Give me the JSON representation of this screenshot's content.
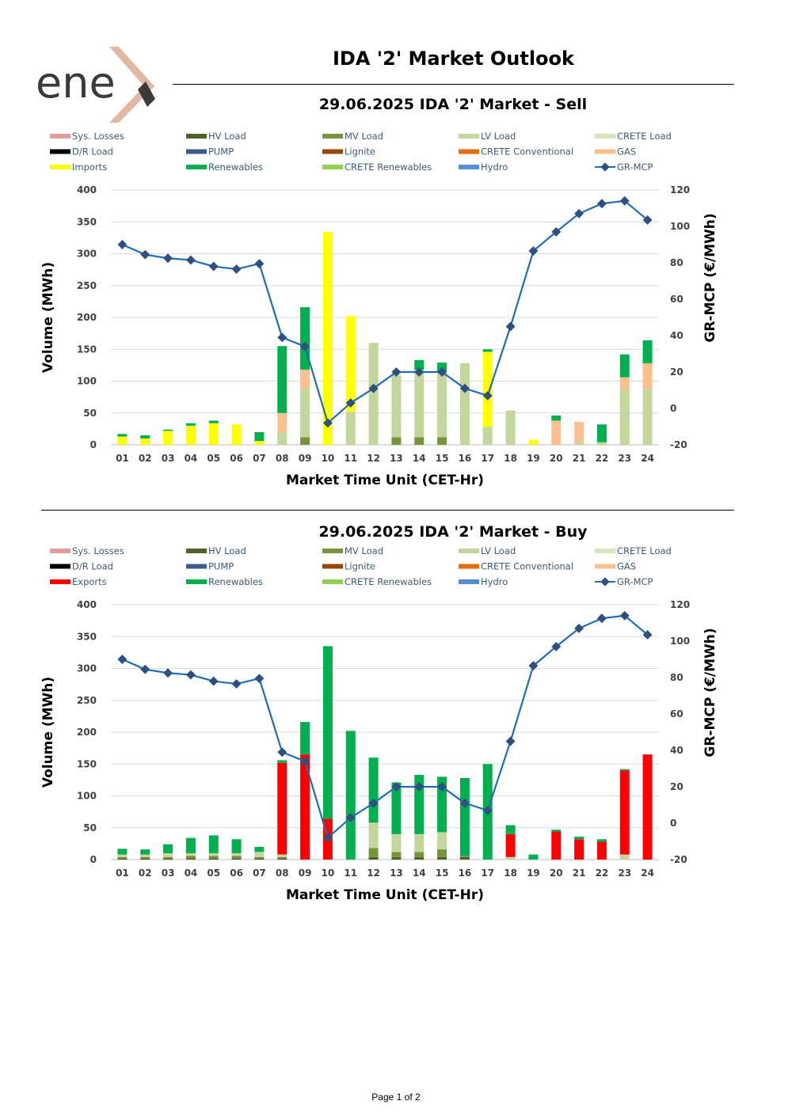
{
  "header": {
    "logo_text": "ene",
    "title": "IDA '2' Market Outlook"
  },
  "footer": {
    "page_label": "Page 1 of 2"
  },
  "chart_data": [
    {
      "id": "sell",
      "type": "bar",
      "stacked": true,
      "title": "29.06.2025  IDA '2' Market - Sell",
      "xlabel": "Market Time Unit (CET-Hr)",
      "ylabel": "Volume (MWh)",
      "y2label": "GR-MCP (€/MWh)",
      "ylim": [
        0,
        400
      ],
      "y2lim": [
        -20,
        120
      ],
      "categories": [
        "01",
        "02",
        "03",
        "04",
        "05",
        "06",
        "07",
        "08",
        "09",
        "10",
        "11",
        "12",
        "13",
        "14",
        "15",
        "16",
        "17",
        "18",
        "19",
        "20",
        "21",
        "22",
        "23",
        "24"
      ],
      "legend": [
        {
          "name": "Sys. Losses",
          "color": "#E39C9A",
          "kind": "bar"
        },
        {
          "name": "HV Load",
          "color": "#4F6228",
          "kind": "bar"
        },
        {
          "name": "MV Load",
          "color": "#77933C",
          "kind": "bar"
        },
        {
          "name": "LV Load",
          "color": "#C3D69B",
          "kind": "bar"
        },
        {
          "name": "CRETE Load",
          "color": "#D7E4BD",
          "kind": "bar"
        },
        {
          "name": "D/R Load",
          "color": "#000000",
          "kind": "bar"
        },
        {
          "name": "PUMP",
          "color": "#3C5E8E",
          "kind": "bar"
        },
        {
          "name": "Lignite",
          "color": "#974806",
          "kind": "bar"
        },
        {
          "name": "CRETE Conventional",
          "color": "#E46C0A",
          "kind": "bar"
        },
        {
          "name": "GAS",
          "color": "#FAC090",
          "kind": "bar"
        },
        {
          "name": "Imports",
          "color": "#FFFF00",
          "kind": "bar"
        },
        {
          "name": "Renewables",
          "color": "#00B050",
          "kind": "bar"
        },
        {
          "name": "CRETE Renewables",
          "color": "#92D050",
          "kind": "bar"
        },
        {
          "name": "Hydro",
          "color": "#558ED5",
          "kind": "bar"
        },
        {
          "name": "GR-MCP",
          "color": "#1F6DB5",
          "kind": "line"
        }
      ],
      "series": [
        {
          "name": "HV Load",
          "color": "#4F6228",
          "values": [
            0,
            0,
            0,
            0,
            0,
            0,
            0,
            0,
            0,
            0,
            0,
            0,
            0,
            0,
            0,
            0,
            0,
            0,
            0,
            0,
            0,
            0,
            0,
            0
          ]
        },
        {
          "name": "MV Load",
          "color": "#77933C",
          "values": [
            0,
            0,
            0,
            0,
            0,
            0,
            0,
            0,
            12,
            0,
            0,
            0,
            12,
            12,
            12,
            0,
            0,
            0,
            0,
            0,
            0,
            0,
            0,
            0
          ]
        },
        {
          "name": "LV Load",
          "color": "#C3D69B",
          "values": [
            0,
            0,
            0,
            0,
            0,
            0,
            0,
            20,
            76,
            0,
            52,
            160,
            98,
            106,
            102,
            128,
            28,
            54,
            0,
            0,
            4,
            4,
            86,
            88
          ]
        },
        {
          "name": "CRETE Load",
          "color": "#D7E4BD",
          "values": [
            0,
            0,
            0,
            0,
            0,
            0,
            0,
            0,
            0,
            0,
            0,
            0,
            0,
            0,
            0,
            0,
            0,
            0,
            0,
            0,
            0,
            0,
            0,
            0
          ]
        },
        {
          "name": "GAS",
          "color": "#FAC090",
          "values": [
            0,
            0,
            0,
            0,
            0,
            0,
            0,
            30,
            30,
            0,
            0,
            0,
            0,
            0,
            0,
            0,
            0,
            0,
            0,
            38,
            32,
            0,
            20,
            40
          ]
        },
        {
          "name": "Imports",
          "color": "#FFFF00",
          "values": [
            13,
            10,
            22,
            30,
            34,
            32,
            6,
            0,
            0,
            334,
            150,
            0,
            0,
            0,
            0,
            0,
            118,
            0,
            8,
            0,
            0,
            0,
            0,
            0
          ]
        },
        {
          "name": "Renewables",
          "color": "#00B050",
          "values": [
            4,
            5,
            2,
            4,
            4,
            0,
            14,
            105,
            98,
            0,
            0,
            0,
            0,
            15,
            15,
            0,
            4,
            0,
            0,
            8,
            0,
            28,
            36,
            36
          ]
        }
      ],
      "line": {
        "name": "GR-MCP",
        "color": "#1F6DB5",
        "values": [
          90,
          84.5,
          82.5,
          81.5,
          78,
          76.5,
          79.5,
          39,
          34,
          -8,
          3,
          11,
          20,
          20,
          20,
          11,
          7,
          45,
          86.5,
          97,
          107,
          112.5,
          114,
          103.5
        ]
      }
    },
    {
      "id": "buy",
      "type": "bar",
      "stacked": true,
      "title": "29.06.2025  IDA '2' Market - Buy",
      "xlabel": "Market Time Unit (CET-Hr)",
      "ylabel": "Volume (MWh)",
      "y2label": "GR-MCP (€/MWh)",
      "ylim": [
        0,
        400
      ],
      "y2lim": [
        -20,
        120
      ],
      "categories": [
        "01",
        "02",
        "03",
        "04",
        "05",
        "06",
        "07",
        "08",
        "09",
        "10",
        "11",
        "12",
        "13",
        "14",
        "15",
        "16",
        "17",
        "18",
        "19",
        "20",
        "21",
        "22",
        "23",
        "24"
      ],
      "legend": [
        {
          "name": "Sys. Losses",
          "color": "#E39C9A",
          "kind": "bar"
        },
        {
          "name": "HV Load",
          "color": "#4F6228",
          "kind": "bar"
        },
        {
          "name": "MV Load",
          "color": "#77933C",
          "kind": "bar"
        },
        {
          "name": "LV Load",
          "color": "#C3D69B",
          "kind": "bar"
        },
        {
          "name": "CRETE Load",
          "color": "#D7E4BD",
          "kind": "bar"
        },
        {
          "name": "D/R Load",
          "color": "#000000",
          "kind": "bar"
        },
        {
          "name": "PUMP",
          "color": "#3C5E8E",
          "kind": "bar"
        },
        {
          "name": "Lignite",
          "color": "#974806",
          "kind": "bar"
        },
        {
          "name": "CRETE Conventional",
          "color": "#E46C0A",
          "kind": "bar"
        },
        {
          "name": "GAS",
          "color": "#FAC090",
          "kind": "bar"
        },
        {
          "name": "Exports",
          "color": "#FF0000",
          "kind": "bar"
        },
        {
          "name": "Renewables",
          "color": "#00B050",
          "kind": "bar"
        },
        {
          "name": "CRETE Renewables",
          "color": "#92D050",
          "kind": "bar"
        },
        {
          "name": "Hydro",
          "color": "#558ED5",
          "kind": "bar"
        },
        {
          "name": "GR-MCP",
          "color": "#1F6DB5",
          "kind": "line"
        }
      ],
      "series": [
        {
          "name": "HV Load",
          "color": "#4F6228",
          "values": [
            2,
            2,
            2,
            2,
            2,
            2,
            2,
            2,
            0,
            0,
            0,
            4,
            4,
            4,
            4,
            4,
            0,
            0,
            0,
            0,
            0,
            0,
            0,
            0
          ]
        },
        {
          "name": "MV Load",
          "color": "#77933C",
          "values": [
            2,
            2,
            2,
            4,
            4,
            4,
            2,
            2,
            0,
            0,
            0,
            14,
            8,
            8,
            12,
            2,
            0,
            0,
            0,
            0,
            0,
            0,
            0,
            0
          ]
        },
        {
          "name": "LV Load",
          "color": "#C3D69B",
          "values": [
            4,
            4,
            6,
            4,
            4,
            4,
            8,
            4,
            0,
            0,
            0,
            40,
            28,
            28,
            27,
            0,
            0,
            4,
            0,
            0,
            0,
            0,
            8,
            0
          ]
        },
        {
          "name": "Exports",
          "color": "#FF0000",
          "values": [
            0,
            0,
            0,
            0,
            0,
            0,
            0,
            144,
            165,
            64,
            0,
            0,
            0,
            0,
            0,
            0,
            0,
            36,
            0,
            44,
            32,
            28,
            132,
            165
          ]
        },
        {
          "name": "Renewables",
          "color": "#00B050",
          "values": [
            9,
            8,
            14,
            24,
            28,
            22,
            8,
            4,
            51,
            271,
            202,
            102,
            81,
            93,
            87,
            122,
            150,
            14,
            8,
            3,
            4,
            4,
            2,
            0
          ]
        }
      ],
      "line": {
        "name": "GR-MCP",
        "color": "#1F6DB5",
        "values": [
          90,
          84.5,
          82.5,
          81.5,
          78,
          76.5,
          79.5,
          39,
          34,
          -8,
          3,
          11,
          20,
          20,
          20,
          11,
          7,
          45,
          86.5,
          97,
          107,
          112.5,
          114,
          103.5
        ]
      }
    }
  ]
}
